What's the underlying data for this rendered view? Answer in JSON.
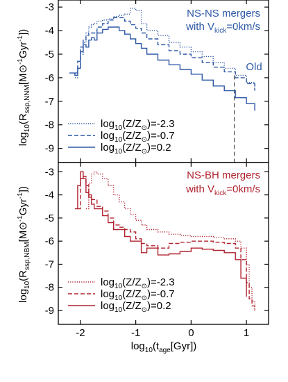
{
  "colors": {
    "top": "#2d58a6",
    "bottom": "#b0222e",
    "axis": "#000000"
  },
  "xaxis": {
    "range": [
      -2.4,
      1.4
    ],
    "ticks": [
      -2,
      -1,
      0,
      1
    ],
    "tick_labels": [
      "-2",
      "-1",
      "0",
      "1"
    ],
    "label_main": "log",
    "label_sub": "10",
    "label_rest": "(t",
    "label_sub2": "age",
    "label_end": "[Gyr])"
  },
  "chart_data": [
    {
      "type": "line",
      "panel": "top",
      "title_line1": "NS-NS mergers",
      "title_line2_pre": "with V",
      "title_line2_sub": "kick",
      "title_line2_post": "=0km/s",
      "ylabel_pre": "log",
      "ylabel_sub": "10",
      "ylabel_mid": "(R",
      "ylabel_sub2": "ssp,NNM",
      "ylabel_post": "[M",
      "ylabel_sym": "⊙",
      "ylabel_unit": "Gyr",
      "ylabel_end": "])",
      "ylim": [
        -9.6,
        -2.7
      ],
      "yticks": [
        -3,
        -4,
        -5,
        -6,
        -7,
        -8,
        -9
      ],
      "ytick_labels": [
        "-3",
        "-4",
        "-5",
        "-6",
        "-7",
        "-8",
        "-9"
      ],
      "vline": {
        "x": 0.78,
        "label": "Old"
      },
      "legend": [
        {
          "pre": "log",
          "sub": "10",
          "mid": "(Z/Z",
          "sym": "⊙",
          "post": ")=-2.3",
          "style": "dotted"
        },
        {
          "pre": "log",
          "sub": "10",
          "mid": "(Z/Z",
          "sym": "⊙",
          "post": ")=-0.7",
          "style": "dashed"
        },
        {
          "pre": "log",
          "sub": "10",
          "mid": "(Z/Z",
          "sym": "⊙",
          "post": ")=0.2",
          "style": "solid"
        }
      ],
      "series": [
        {
          "style": "dotted",
          "x": [
            -2.1,
            -2.05,
            -2.0,
            -1.95,
            -1.9,
            -1.85,
            -1.8,
            -1.75,
            -1.7,
            -1.6,
            -1.5,
            -1.4,
            -1.3,
            -1.2,
            -1.1,
            -1.0,
            -0.9,
            -0.8,
            -0.6,
            -0.4,
            -0.2,
            0.0,
            0.2,
            0.4,
            0.6,
            0.8,
            1.0,
            1.15
          ],
          "y": [
            -6.0,
            -5.6,
            -5.0,
            -4.5,
            -4.1,
            -3.85,
            -3.75,
            -3.7,
            -3.6,
            -3.55,
            -3.5,
            -3.4,
            -3.35,
            -3.3,
            -3.05,
            -3.15,
            -3.7,
            -4.0,
            -4.2,
            -4.5,
            -4.7,
            -4.9,
            -5.1,
            -5.35,
            -5.6,
            -5.9,
            -6.2,
            -6.5
          ]
        },
        {
          "style": "dashed",
          "x": [
            -2.1,
            -2.05,
            -2.0,
            -1.95,
            -1.9,
            -1.85,
            -1.8,
            -1.7,
            -1.6,
            -1.5,
            -1.4,
            -1.3,
            -1.2,
            -1.1,
            -1.0,
            -0.9,
            -0.8,
            -0.6,
            -0.4,
            -0.2,
            0.0,
            0.2,
            0.4,
            0.6,
            0.8,
            1.0,
            1.15
          ],
          "y": [
            -5.8,
            -5.3,
            -4.7,
            -4.4,
            -4.2,
            -4.1,
            -4.1,
            -3.85,
            -3.7,
            -3.55,
            -3.45,
            -3.45,
            -3.6,
            -3.75,
            -3.9,
            -4.1,
            -4.35,
            -4.6,
            -4.85,
            -5.0,
            -5.15,
            -5.35,
            -5.55,
            -5.75,
            -6.0,
            -6.25,
            -6.55
          ]
        },
        {
          "style": "solid",
          "x": [
            -2.2,
            -2.1,
            -2.05,
            -2.0,
            -1.95,
            -1.9,
            -1.85,
            -1.8,
            -1.75,
            -1.7,
            -1.6,
            -1.5,
            -1.4,
            -1.3,
            -1.2,
            -1.1,
            -1.0,
            -0.9,
            -0.8,
            -0.6,
            -0.4,
            -0.2,
            0.0,
            0.2,
            0.4,
            0.6,
            0.8,
            1.0,
            1.15
          ],
          "y": [
            -5.8,
            -5.9,
            -5.6,
            -4.9,
            -4.6,
            -4.7,
            -4.4,
            -4.3,
            -4.4,
            -4.1,
            -3.95,
            -3.85,
            -3.85,
            -4.0,
            -4.15,
            -4.35,
            -4.55,
            -4.75,
            -5.0,
            -5.25,
            -5.45,
            -5.65,
            -5.85,
            -6.1,
            -6.35,
            -6.55,
            -6.85,
            -7.1,
            -7.4
          ]
        }
      ]
    },
    {
      "type": "line",
      "panel": "bottom",
      "title_line1": "NS-BH mergers",
      "title_line2_pre": "with V",
      "title_line2_sub": "kick",
      "title_line2_post": "=0km/s",
      "ylabel_pre": "log",
      "ylabel_sub": "10",
      "ylabel_mid": "(R",
      "ylabel_sub2": "ssp,NBM",
      "ylabel_post": "[M",
      "ylabel_sym": "⊙",
      "ylabel_unit": "Gyr",
      "ylabel_end": "])",
      "ylim": [
        -9.6,
        -2.6
      ],
      "yticks": [
        -3,
        -4,
        -5,
        -6,
        -7,
        -8,
        -9
      ],
      "ytick_labels": [
        "-3",
        "-4",
        "-5",
        "-6",
        "-7",
        "-8",
        "-9"
      ],
      "legend": [
        {
          "pre": "log",
          "sub": "10",
          "mid": "(Z/Z",
          "sym": "⊙",
          "post": ")=-2.3",
          "style": "dotted"
        },
        {
          "pre": "log",
          "sub": "10",
          "mid": "(Z/Z",
          "sym": "⊙",
          "post": ")=-0.7",
          "style": "dashed"
        },
        {
          "pre": "log",
          "sub": "10",
          "mid": "(Z/Z",
          "sym": "⊙",
          "post": ")=0.2",
          "style": "solid"
        }
      ],
      "series": [
        {
          "style": "dotted",
          "x": [
            -1.9,
            -1.85,
            -1.8,
            -1.75,
            -1.7,
            -1.6,
            -1.5,
            -1.4,
            -1.3,
            -1.2,
            -1.1,
            -1.0,
            -0.9,
            -0.8,
            -0.6,
            -0.4,
            -0.2,
            0.0,
            0.2,
            0.4,
            0.6,
            0.8,
            0.9,
            1.0,
            1.05,
            1.1,
            1.15
          ],
          "y": [
            -4.6,
            -3.5,
            -3.1,
            -3.0,
            -3.1,
            -3.3,
            -3.6,
            -4.0,
            -4.3,
            -4.6,
            -4.85,
            -5.1,
            -5.3,
            -5.5,
            -5.6,
            -5.7,
            -5.75,
            -5.8,
            -5.8,
            -5.85,
            -5.9,
            -6.0,
            -6.3,
            -7.0,
            -8.0,
            -8.6,
            -9.0
          ]
        },
        {
          "style": "dashed",
          "x": [
            -2.05,
            -2.0,
            -1.95,
            -1.9,
            -1.85,
            -1.8,
            -1.7,
            -1.6,
            -1.5,
            -1.4,
            -1.3,
            -1.2,
            -1.1,
            -1.0,
            -0.9,
            -0.8,
            -0.6,
            -0.4,
            -0.2,
            0.0,
            0.2,
            0.4,
            0.6,
            0.8,
            0.9,
            1.0,
            1.05,
            1.1,
            1.15
          ],
          "y": [
            -4.6,
            -3.3,
            -3.2,
            -3.6,
            -4.0,
            -4.2,
            -4.5,
            -4.7,
            -5.0,
            -5.3,
            -5.4,
            -5.5,
            -5.6,
            -5.9,
            -6.1,
            -6.2,
            -6.3,
            -6.1,
            -6.05,
            -6.0,
            -6.0,
            -6.05,
            -6.1,
            -6.3,
            -6.8,
            -7.8,
            -8.5,
            -8.8,
            -9.0
          ]
        },
        {
          "style": "solid",
          "x": [
            -2.1,
            -2.05,
            -2.0,
            -1.95,
            -1.9,
            -1.85,
            -1.8,
            -1.75,
            -1.7,
            -1.6,
            -1.5,
            -1.4,
            -1.3,
            -1.2,
            -1.1,
            -1.0,
            -0.9,
            -0.8,
            -0.6,
            -0.4,
            -0.2,
            0.0,
            0.2,
            0.4,
            0.6,
            0.8,
            0.9,
            1.0
          ],
          "y": [
            -4.6,
            -3.6,
            -3.0,
            -3.3,
            -3.9,
            -4.1,
            -4.4,
            -4.6,
            -4.6,
            -4.9,
            -5.2,
            -5.5,
            -5.5,
            -5.8,
            -6.0,
            -6.0,
            -6.5,
            -6.3,
            -6.6,
            -6.55,
            -6.45,
            -6.3,
            -6.35,
            -6.4,
            -6.5,
            -6.8,
            -7.6,
            -8.4
          ]
        }
      ]
    }
  ]
}
